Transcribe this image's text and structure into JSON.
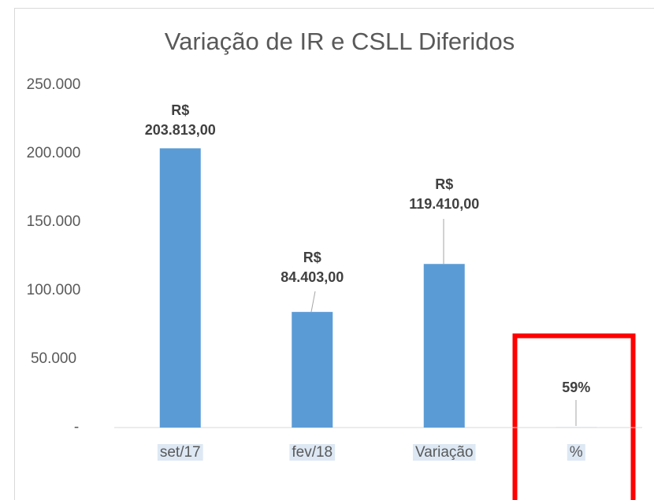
{
  "chart_data": {
    "type": "bar",
    "title": "Variação de IR e CSLL Diferidos",
    "categories": [
      "set/17",
      "fev/18",
      "Variação",
      "%"
    ],
    "values": [
      203813,
      84403,
      119410,
      59
    ],
    "value_labels": [
      "R$ 203.813,00",
      "R$ 84.403,00",
      "R$ 119.410,00",
      "59%"
    ],
    "color": "#5b9bd5",
    "ylim": [
      0,
      250000
    ],
    "yticks": [
      {
        "value": 0,
        "label": "-"
      },
      {
        "value": 50000,
        "label": "50.000"
      },
      {
        "value": 100000,
        "label": "100.000"
      },
      {
        "value": 150000,
        "label": "150.000"
      },
      {
        "value": 200000,
        "label": "200.000"
      },
      {
        "value": 250000,
        "label": "250.000"
      }
    ],
    "grid": false
  }
}
